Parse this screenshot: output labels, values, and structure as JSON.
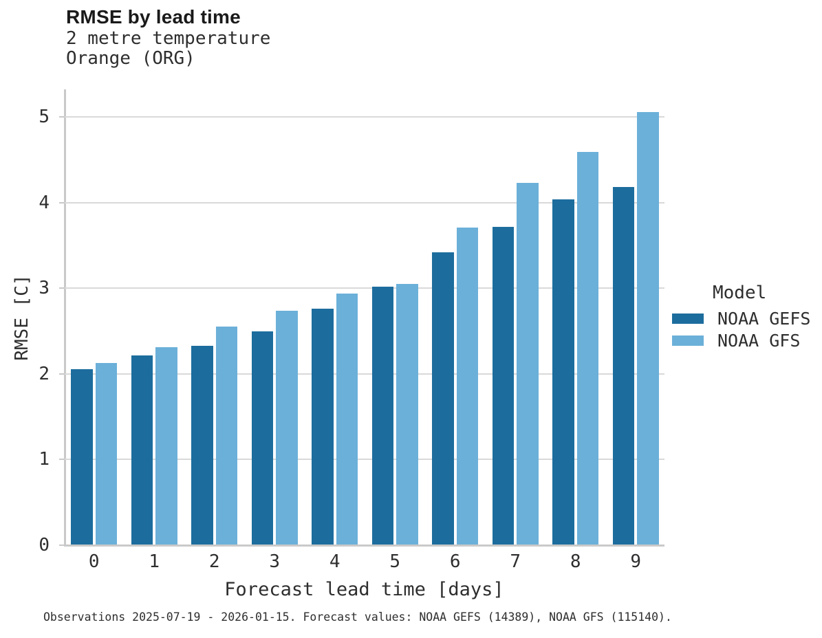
{
  "title": "RMSE by lead time",
  "subtitle_line1": "2 metre temperature",
  "subtitle_line2": "Orange (ORG)",
  "footer": "Observations 2025-07-19 - 2026-01-15. Forecast values: NOAA GEFS (14389), NOAA GFS (115140).",
  "chart_data": {
    "type": "bar",
    "title": "RMSE by lead time",
    "subtitle": [
      "2 metre temperature",
      "Orange (ORG)"
    ],
    "categories": [
      "0",
      "1",
      "2",
      "3",
      "4",
      "5",
      "6",
      "7",
      "8",
      "9"
    ],
    "series": [
      {
        "name": "NOAA GEFS",
        "color": "#1c6d9d",
        "values": [
          2.05,
          2.21,
          2.32,
          2.49,
          2.75,
          3.01,
          3.41,
          3.71,
          4.03,
          4.17
        ]
      },
      {
        "name": "NOAA GFS",
        "color": "#6bb0d9",
        "values": [
          2.12,
          2.3,
          2.54,
          2.73,
          2.93,
          3.04,
          3.7,
          4.22,
          4.58,
          5.05
        ]
      }
    ],
    "xlabel": "Forecast lead time [days]",
    "ylabel": "RMSE [C]",
    "ylim": [
      0,
      5.32
    ],
    "yticks": [
      0,
      1,
      2,
      3,
      4,
      5
    ],
    "grid": true,
    "legend_title": "Model",
    "legend_position": "right",
    "colors": {
      "grid": "#d9d9d9",
      "axis": "#c9c9c9",
      "text": "#2e2e2e",
      "title_text": "#1a1a1a"
    }
  }
}
